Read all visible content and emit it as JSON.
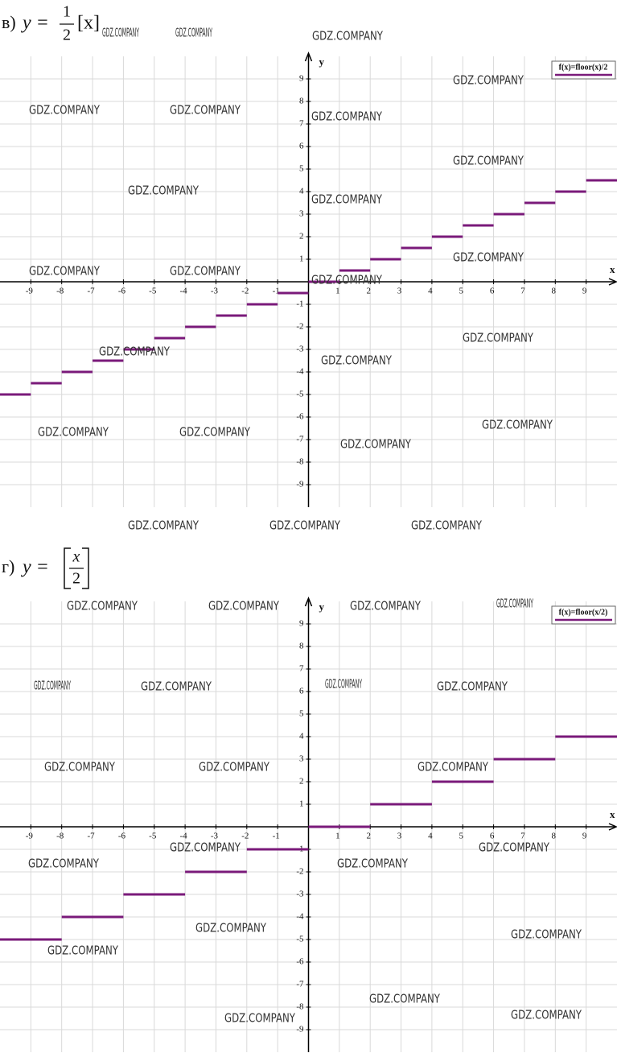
{
  "chart_data": [
    {
      "type": "step",
      "title": {
        "label": "в)",
        "lhs": "y =",
        "num": "1",
        "den": "2",
        "rest": "[x]"
      },
      "xlabel": "x",
      "ylabel": "y",
      "xlim": [
        -10,
        10
      ],
      "ylim": [
        -10,
        10
      ],
      "xticks": [
        -9,
        -8,
        -7,
        -6,
        -5,
        -4,
        -3,
        -2,
        -1,
        1,
        2,
        3,
        4,
        5,
        6,
        7,
        8,
        9
      ],
      "yticks": [
        -9,
        -8,
        -7,
        -6,
        -5,
        -4,
        -3,
        -2,
        -1,
        1,
        2,
        3,
        4,
        5,
        6,
        7,
        8,
        9
      ],
      "grid": true,
      "series": [
        {
          "name": "f(x)=floor(x)/2",
          "color": "#7a1a7a",
          "segments": [
            {
              "x": [
                -10,
                -9
              ],
              "y": -5
            },
            {
              "x": [
                -9,
                -8
              ],
              "y": -4.5
            },
            {
              "x": [
                -8,
                -7
              ],
              "y": -4
            },
            {
              "x": [
                -7,
                -6
              ],
              "y": -3.5
            },
            {
              "x": [
                -6,
                -5
              ],
              "y": -3
            },
            {
              "x": [
                -5,
                -4
              ],
              "y": -2.5
            },
            {
              "x": [
                -4,
                -3
              ],
              "y": -2
            },
            {
              "x": [
                -3,
                -2
              ],
              "y": -1.5
            },
            {
              "x": [
                -2,
                -1
              ],
              "y": -1
            },
            {
              "x": [
                -1,
                0
              ],
              "y": -0.5
            },
            {
              "x": [
                0,
                1
              ],
              "y": 0
            },
            {
              "x": [
                1,
                2
              ],
              "y": 0.5
            },
            {
              "x": [
                2,
                3
              ],
              "y": 1
            },
            {
              "x": [
                3,
                4
              ],
              "y": 1.5
            },
            {
              "x": [
                4,
                5
              ],
              "y": 2
            },
            {
              "x": [
                5,
                6
              ],
              "y": 2.5
            },
            {
              "x": [
                6,
                7
              ],
              "y": 3
            },
            {
              "x": [
                7,
                8
              ],
              "y": 3.5
            },
            {
              "x": [
                8,
                9
              ],
              "y": 4
            },
            {
              "x": [
                9,
                10
              ],
              "y": 4.5
            }
          ]
        }
      ]
    },
    {
      "type": "step",
      "title": {
        "label": "г)",
        "lhs": "y =",
        "num": "x",
        "den": "2"
      },
      "xlabel": "x",
      "ylabel": "y",
      "xlim": [
        -10,
        10
      ],
      "ylim": [
        -10,
        10
      ],
      "xticks": [
        -9,
        -8,
        -7,
        -6,
        -5,
        -4,
        -3,
        -2,
        -1,
        1,
        2,
        3,
        4,
        5,
        6,
        7,
        8,
        9
      ],
      "yticks": [
        -9,
        -8,
        -7,
        -6,
        -5,
        -4,
        -3,
        -2,
        -1,
        1,
        2,
        3,
        4,
        5,
        6,
        7,
        8,
        9
      ],
      "grid": true,
      "series": [
        {
          "name": "f(x)=floor(x/2)",
          "color": "#7a1a7a",
          "segments": [
            {
              "x": [
                -10,
                -8
              ],
              "y": -5
            },
            {
              "x": [
                -8,
                -6
              ],
              "y": -4
            },
            {
              "x": [
                -6,
                -4
              ],
              "y": -3
            },
            {
              "x": [
                -4,
                -2
              ],
              "y": -2
            },
            {
              "x": [
                -2,
                0
              ],
              "y": -1
            },
            {
              "x": [
                0,
                2
              ],
              "y": 0
            },
            {
              "x": [
                2,
                4
              ],
              "y": 1
            },
            {
              "x": [
                4,
                6
              ],
              "y": 2
            },
            {
              "x": [
                6,
                8
              ],
              "y": 3
            },
            {
              "x": [
                8,
                10
              ],
              "y": 4
            }
          ]
        }
      ]
    }
  ],
  "watermarks": [
    "GDZ.COMPANY",
    "GDZ.COMPANY",
    "GDZ.COMPANY",
    "GDZ.COMPANY",
    "GDZ.COMPANY",
    "GDZ.COMPANY",
    "GDZ.COMPANY",
    "GDZ.COMPANY",
    "GDZ.COMPANY",
    "GDZ.COMPANY",
    "GDZ.COMPANY",
    "GDZ.COMPANY",
    "GDZ.COMPANY",
    "GDZ.COMPANY",
    "GDZ.COMPANY",
    "GDZ.COMPANY",
    "GDZ.COMPANY",
    "GDZ.COMPANY",
    "GDZ.COMPANY",
    "GDZ.COMPANY",
    "GDZ.COMPANY",
    "GDZ.COMPANY",
    "GDZ.COMPANY",
    "GDZ.COMPANY",
    "GDZ.COMPANY",
    "GDZ.COMPANY",
    "GDZ.COMPANY",
    "GDZ.COMPANY",
    "GDZ.COMPANY",
    "GDZ.COMPANY",
    "GDZ.COMPANY",
    "GDZ.COMPANY",
    "GDZ.COMPANY",
    "GDZ.COMPANY",
    "GDZ.COMPANY",
    "GDZ.COMPANY",
    "GDZ.COMPANY",
    "GDZ.COMPANY",
    "GDZ.COMPANY",
    "GDZ.COMPANY",
    "GDZ.COMPANY",
    "GDZ.COMPANY",
    "GDZ.COMPANY",
    "GDZ.COMPANY",
    "GDZ.COMPANY"
  ]
}
